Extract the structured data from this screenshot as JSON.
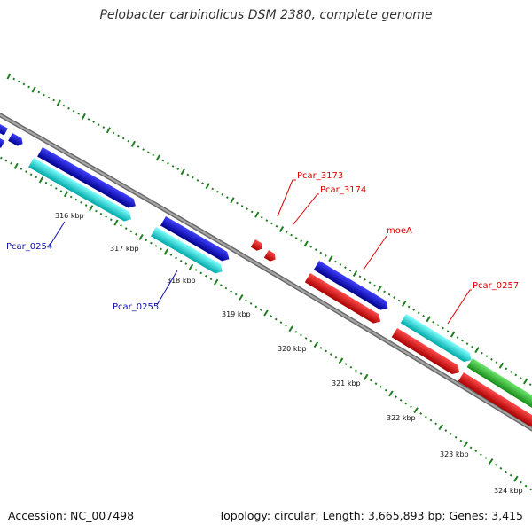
{
  "title": "Pelobacter carbinolicus DSM 2380, complete genome",
  "footer": {
    "accession": "Accession: NC_007498",
    "topology": "Topology: circular; Length: 3,665,893 bp; Genes: 3,415"
  },
  "colors": {
    "backbone": "#8c8c8c",
    "tick": "#1e7d1e",
    "forward_gene": "#0a0ae6",
    "reverse_gene": "#00e8e8",
    "rna_gene": "#f00a0a",
    "other_gene": "#3cc83c",
    "label_red": "#e00000",
    "label_blue": "#1010b0"
  },
  "ticks": [
    "316 kbp",
    "317 kbp",
    "318 kbp",
    "319 kbp",
    "320 kbp",
    "321 kbp",
    "322 kbp",
    "323 kbp",
    "324 kbp"
  ],
  "gene_labels": [
    {
      "text": "Pcar_3173",
      "color": "red"
    },
    {
      "text": "Pcar_3174",
      "color": "red"
    },
    {
      "text": "moeA",
      "color": "red"
    },
    {
      "text": "Pcar_0257",
      "color": "red"
    },
    {
      "text": "Pcar_0254",
      "color": "blue"
    },
    {
      "text": "Pcar_0255",
      "color": "blue"
    }
  ]
}
